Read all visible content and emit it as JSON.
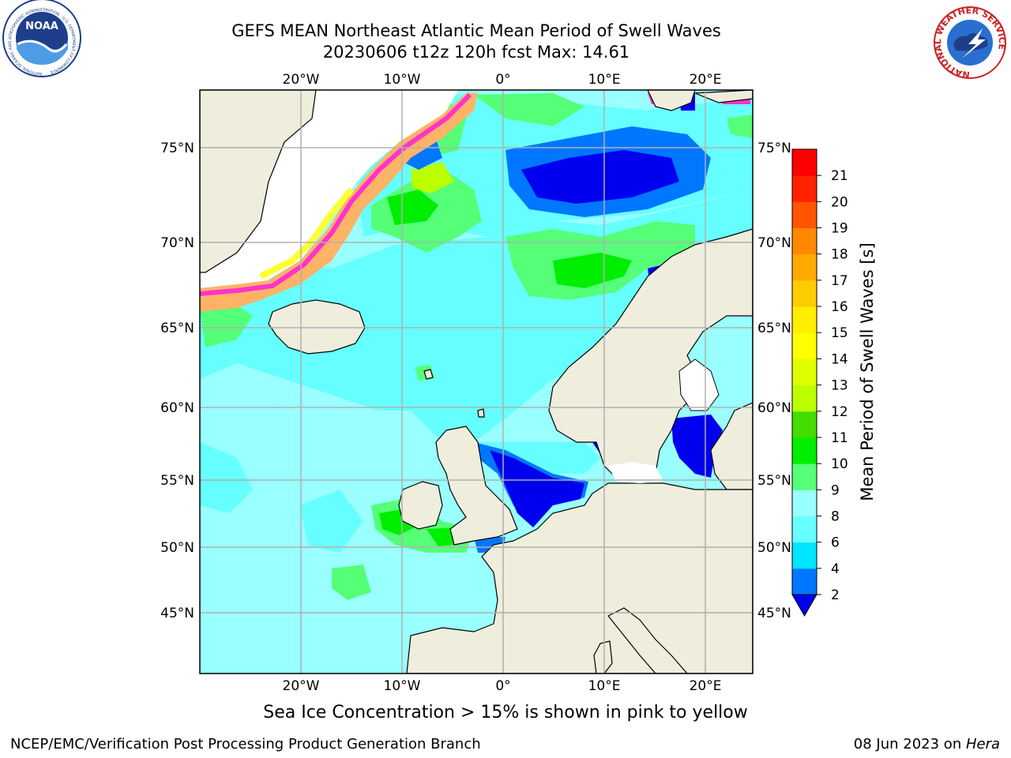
{
  "title": {
    "line1": "GEFS MEAN Northeast Atlantic Mean Period of Swell Waves",
    "line2": "20230606 t12z 120h fcst   Max: 14.61"
  },
  "note": "Sea Ice Concentration > 15% is shown in pink to yellow",
  "footer": {
    "left": "NCEP/EMC/Verification Post Processing Product Generation Branch",
    "date": "08 Jun 2023 on ",
    "host": "Hera"
  },
  "logos": {
    "noaa": "NOAA",
    "noaa_ring": "NATIONAL OCEANIC AND ATMOSPHERIC ADMINISTRATION · U.S. DEPARTMENT OF COMMERCE",
    "nws_ring": "NATIONAL WEATHER SERVICE"
  },
  "map": {
    "lon_labels": [
      "20°W",
      "10°W",
      "0°",
      "10°E",
      "20°E"
    ],
    "lat_labels": [
      "75°N",
      "70°N",
      "65°N",
      "60°N",
      "55°N",
      "50°N",
      "45°N"
    ],
    "lon_range": [
      -30,
      25
    ],
    "lat_range": [
      41,
      78
    ],
    "projection": "Mercator",
    "colors": {
      "land": "#efeddc",
      "ocean_default": "#99ffff",
      "grid": "#b0b0b0",
      "ice_pink": "#ff33cc",
      "ice_orange": "#ffb366",
      "ice_yellow": "#ffff33"
    }
  },
  "colorbar": {
    "label": "Mean Period of Swell Waves [s]",
    "ticks": [
      "2",
      "4",
      "6",
      "8",
      "9",
      "10",
      "11",
      "12",
      "13",
      "14",
      "15",
      "16",
      "17",
      "18",
      "19",
      "20",
      "21"
    ],
    "colors": [
      "#0077ff",
      "#00e5ff",
      "#66ffff",
      "#99ffff",
      "#55ff77",
      "#00ee00",
      "#44dd00",
      "#bbff00",
      "#dfff00",
      "#ffff00",
      "#ffee00",
      "#ffcc00",
      "#ffaa00",
      "#ff8800",
      "#ff5500",
      "#ff2200",
      "#ff0000"
    ],
    "under_color": "#0000ee"
  }
}
